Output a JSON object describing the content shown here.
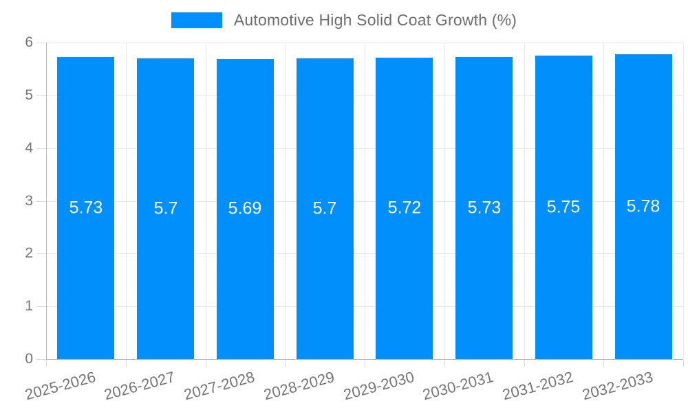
{
  "chart_data": {
    "type": "bar",
    "title": "Automotive High Solid Coat Growth (%)",
    "legend": {
      "position": "top",
      "label": "Automotive High Solid Coat Growth (%)"
    },
    "categories": [
      "2025-2026",
      "2026-2027",
      "2027-2028",
      "2028-2029",
      "2029-2030",
      "2030-2031",
      "2031-2032",
      "2032-2033"
    ],
    "series": [
      {
        "name": "Automotive High Solid Coat Growth (%)",
        "values": [
          5.73,
          5.7,
          5.69,
          5.7,
          5.72,
          5.73,
          5.75,
          5.78
        ]
      }
    ],
    "xlabel": "",
    "ylabel": "",
    "ylim": [
      0,
      6
    ],
    "y_ticks": [
      0,
      1,
      2,
      3,
      4,
      5,
      6
    ],
    "grid": "on",
    "value_labels": "inside-center",
    "colors": {
      "bar": "#008FFB",
      "value_label": "#FFFFFF",
      "grid_line": "#E7E7E7",
      "axis_line": "#B9B9B9",
      "tick_line": "#D9D9D9",
      "tick_label": "#757575",
      "title": "#6E6E6E",
      "background": "#FFFFFF"
    }
  }
}
